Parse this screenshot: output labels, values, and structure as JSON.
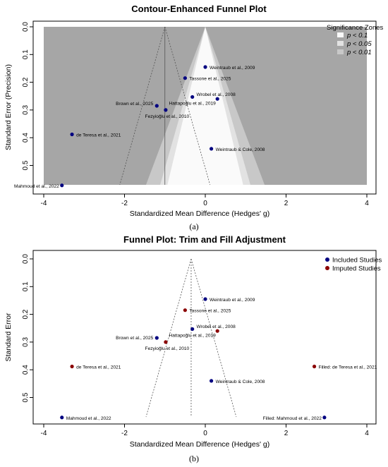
{
  "chart_data": [
    {
      "type": "scatter",
      "title": "Contour-Enhanced Funnel Plot",
      "xlabel": "Standardized Mean Difference (Hedges' g)",
      "ylabel": "Standard Error (Precision)",
      "xlim": [
        -4,
        4
      ],
      "ylim": [
        0,
        0.57
      ],
      "y_reversed": true,
      "x_ticks": [
        "-4",
        "-2",
        "0",
        "2",
        "4"
      ],
      "y_ticks": [
        "0.0",
        "0.1",
        "0.2",
        "0.3",
        "0.4",
        "0.5"
      ],
      "legend_title": "Significance Zones",
      "legend": [
        "p < 0.1",
        "p < 0.05",
        "p < 0.01"
      ],
      "legend_position": "top-right",
      "reference_lines": {
        "pooled_effect": -1.0,
        "null_effect": 0
      },
      "colors": {
        "outside": "#a6a6a6",
        "p01": "#c8c8c8",
        "p05": "#e2e2e2",
        "p10": "#fafafa",
        "point": "#000080"
      },
      "series": [
        {
          "points": [
            {
              "label": "Weintraub et al., 2009",
              "x": 0.0,
              "y": 0.145
            },
            {
              "label": "Tassone et al., 2025",
              "x": -0.5,
              "y": 0.185
            },
            {
              "label": "Wrobel et al., 2008",
              "x": 0.3,
              "y": 0.26
            },
            {
              "label": "Hattapoğlu et al., 2019",
              "x": -0.32,
              "y": 0.253
            },
            {
              "label": "Brown et al., 2025",
              "x": -1.2,
              "y": 0.285
            },
            {
              "label": "Fezyioğlu et al., 2010",
              "x": -0.98,
              "y": 0.3
            },
            {
              "label": "de Teresa et al., 2021",
              "x": -3.3,
              "y": 0.388
            },
            {
              "label": "Weintraub & Cole, 2008",
              "x": 0.15,
              "y": 0.44
            },
            {
              "label": "Mahmoud et al., 2022",
              "x": -3.55,
              "y": 0.572
            }
          ]
        }
      ],
      "panel_tag": "(a)"
    },
    {
      "type": "scatter",
      "title": "Funnel Plot: Trim and Fill Adjustment",
      "xlabel": "Standardized Mean Difference (Hedges' g)",
      "ylabel": "Standard Error",
      "xlim": [
        -4,
        4
      ],
      "ylim": [
        0,
        0.57
      ],
      "y_reversed": true,
      "x_ticks": [
        "-4",
        "-2",
        "0",
        "2",
        "4"
      ],
      "y_ticks": [
        "0.0",
        "0.1",
        "0.2",
        "0.3",
        "0.4",
        "0.5"
      ],
      "legend": [
        "Included Studies",
        "Imputed Studies"
      ],
      "legend_position": "top-right",
      "reference_lines": {
        "adjusted_effect": -0.35
      },
      "colors": {
        "included": "#000080",
        "imputed": "#8b0000"
      },
      "series": [
        {
          "name": "Included Studies",
          "points": [
            {
              "label": "Weintraub et al., 2009",
              "x": 0.0,
              "y": 0.145
            },
            {
              "label": "Hattapoğlu et al., 2019",
              "x": -0.32,
              "y": 0.253
            },
            {
              "label": "Brown et al., 2025",
              "x": -1.2,
              "y": 0.285
            },
            {
              "label": "Weintraub & Cole, 2008",
              "x": 0.15,
              "y": 0.44
            },
            {
              "label": "Mahmoud et al., 2022",
              "x": -3.55,
              "y": 0.572
            },
            {
              "label": "Filled: Mahmoud et al., 2022",
              "x": 2.95,
              "y": 0.572
            }
          ]
        },
        {
          "name": "Imputed Studies",
          "points": [
            {
              "label": "Tassone et al., 2025",
              "x": -0.5,
              "y": 0.185
            },
            {
              "label": "Wrobel et al., 2008",
              "x": 0.3,
              "y": 0.26
            },
            {
              "label": "Fezyioğlu et al., 2010",
              "x": -0.98,
              "y": 0.3
            },
            {
              "label": "de Teresa et al., 2021",
              "x": -3.3,
              "y": 0.388
            },
            {
              "label": "Filled: de Teresa et al., 2021",
              "x": 2.7,
              "y": 0.388
            }
          ]
        }
      ],
      "panel_tag": "(b)"
    }
  ]
}
